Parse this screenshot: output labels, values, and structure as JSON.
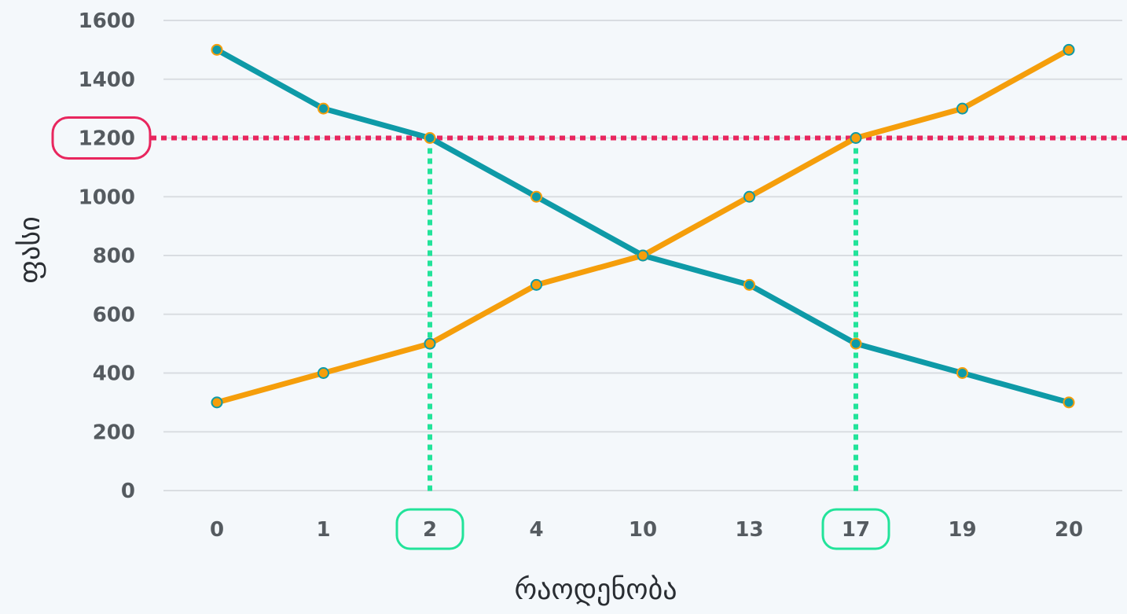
{
  "chart_data": {
    "type": "line",
    "xlabel": "რაოდენობა",
    "ylabel": "ფასი",
    "categories": [
      "0",
      "1",
      "2",
      "4",
      "10",
      "13",
      "17",
      "19",
      "20"
    ],
    "ylim": [
      0,
      1600
    ],
    "y_ticks": [
      "0",
      "200",
      "400",
      "600",
      "800",
      "1000",
      "1200",
      "1400",
      "1600"
    ],
    "grid": true,
    "series": [
      {
        "color": "#0e9aa7",
        "marker_color": "#0e9aa7",
        "marker_edge": "#f59e0b",
        "values": [
          1500,
          1300,
          1200,
          1000,
          800,
          700,
          500,
          400,
          300
        ]
      },
      {
        "color": "#f59e0b",
        "marker_color": "#f59e0b",
        "marker_edge": "#0e9aa7",
        "values": [
          300,
          400,
          500,
          700,
          800,
          1000,
          1200,
          1300,
          1500
        ]
      }
    ],
    "annotations": {
      "horizontal_line": {
        "y": 1200,
        "color": "#e8265e"
      },
      "vertical_lines": [
        {
          "category": "2",
          "color": "#22e39a"
        },
        {
          "category": "17",
          "color": "#22e39a"
        }
      ],
      "highlighted_y_tick": {
        "label": "1200",
        "color": "#e8265e"
      },
      "highlighted_x_ticks": [
        {
          "label": "2",
          "color": "#22e39a"
        },
        {
          "label": "17",
          "color": "#22e39a"
        }
      ]
    },
    "colors": {
      "background": "#f4f8fb",
      "grid": "#d9dde1",
      "tick_text": "#555b60",
      "axis_title": "#2a2e33"
    }
  }
}
